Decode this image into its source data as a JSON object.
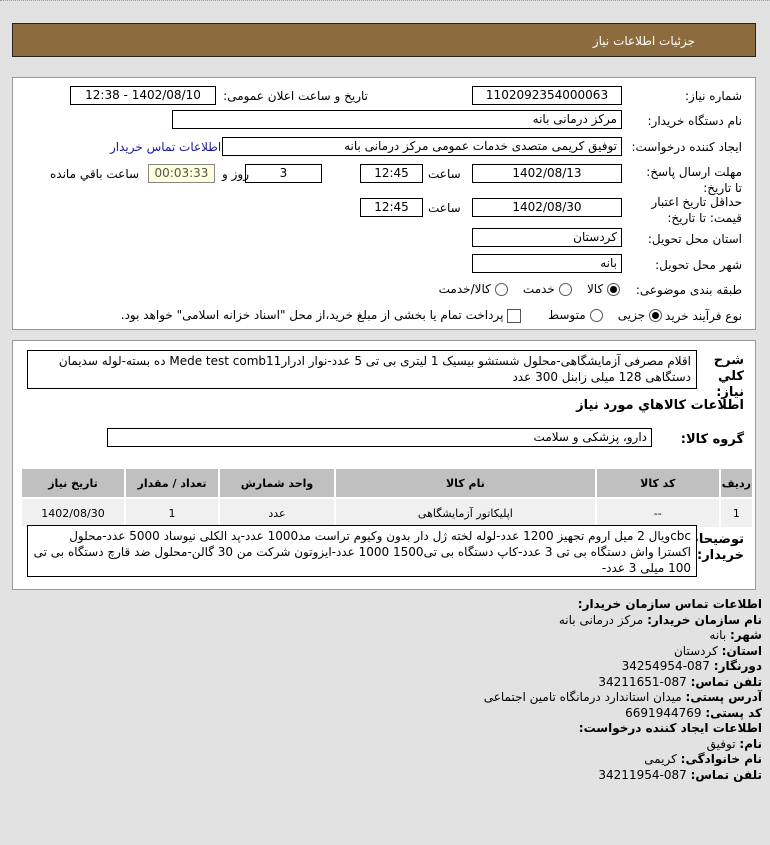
{
  "header": {
    "title": "جزئیات اطلاعات نیاز"
  },
  "form": {
    "need_number_label": "شماره نیاز:",
    "need_number": "1102092354000063",
    "announce_label": "تاریخ و ساعت اعلان عمومی:",
    "announce_value": "1402/08/10 - 12:38",
    "buyer_label": "نام دستگاه خریدار:",
    "buyer_value": "مرکز درمانی بانه",
    "creator_label": "ایجاد کننده درخواست:",
    "creator_value": "توفیق کریمی متصدی خدمات عمومی مرکز درمانی بانه",
    "contact_link": "اطلاعات تماس خریدار",
    "deadline_label": "مهلت ارسال پاسخ: تا تاریخ:",
    "deadline_date": "1402/08/13",
    "time_label": "ساعت",
    "deadline_time": "12:45",
    "days": "3",
    "days_label": "روز و",
    "remaining": "00:03:33",
    "remaining_label": "ساعت باقي مانده",
    "validity_label": "حداقل تاریخ اعتبار قیمت: تا تاریخ:",
    "validity_date": "1402/08/30",
    "validity_time": "12:45",
    "province_label": "استان محل تحویل:",
    "province": "کردستان",
    "city_label": "شهر محل تحویل:",
    "city": "بانه",
    "category_label": "طبقه بندی موضوعی:",
    "category_options": [
      "کالا",
      "خدمت",
      "کالا/خدمت"
    ],
    "category_selected": "کالا",
    "process_label": "نوع فرآیند خرید :",
    "process_options": [
      "جزیی",
      "متوسط"
    ],
    "process_selected": "جزیی",
    "payment_note": "پرداخت تمام یا بخشی از مبلغ خرید،از محل \"اسناد خزانه اسلامی\" خواهد بود."
  },
  "summary": {
    "label": "شرح کلي نياز:",
    "text": "اقلام مصرفی آزمایشگاهی-محلول شستشو بیسیک 1 لیتری بی تی 5 عدد-نوار ادرارMede test comb11 ده بسته-لوله سدیمان دستگاهی 128 میلی زابنل 300 عدد"
  },
  "goods": {
    "section_title": "اطلاعات کالاهاي مورد نياز",
    "group_label": "گروه کالا:",
    "group_value": "دارو، پزشکی و سلامت",
    "columns": [
      "ردیف",
      "کد کالا",
      "نام کالا",
      "واحد شمارش",
      "تعداد / مقدار",
      "تاریخ نیاز"
    ],
    "rows": [
      [
        "1",
        "--",
        "اپلیکاتور آزمایشگاهی",
        "عدد",
        "1",
        "1402/08/30"
      ]
    ]
  },
  "notes": {
    "label": "توضیحات خریدار:",
    "text": "cbcویال 2 میل اروم تجهیز 1200 عدد-لوله لخته ژل دار بدون وکیوم تراست مد1000 عدد-پد الکلی نیوساد 5000 عدد-محلول اکسترا واش دستگاه بی تی 3 عدد-کاپ دستگاه بی تی1500 1000 عدد-ایزوتون شرکت من 30 گالن-محلول ضد قارچ دستگاه بی تی 100 میلی 3 عدد-"
  },
  "contact": {
    "title": "اطلاعات تماس سازمان خریدار:",
    "org_label": "نام سازمان خریدار:",
    "org": "مرکز درمانی بانه",
    "city_label": "شهر:",
    "city": "بانه",
    "province_label": "استان:",
    "province": "کردستان",
    "fax_label": "دورنگار:",
    "fax": "087-34254954",
    "phone_label": "تلفن تماس:",
    "phone": "087-34211651",
    "address_label": "آدرس پستی:",
    "address": "میدان استاندارد درمانگاه تامین اجتماعی",
    "postal_label": "کد پستی:",
    "postal": "6691944769",
    "creator_title": "اطلاعات ایجاد کننده درخواست:",
    "name_label": "نام:",
    "name": "توفیق",
    "family_label": "نام خانوادگی:",
    "family": "کریمی",
    "cphone_label": "تلفن تماس:",
    "cphone": "087-34211954"
  },
  "colors": {
    "header": "#8c6c3f",
    "remaining_bg": "#ffffdd",
    "link": "#1a1aa6"
  }
}
